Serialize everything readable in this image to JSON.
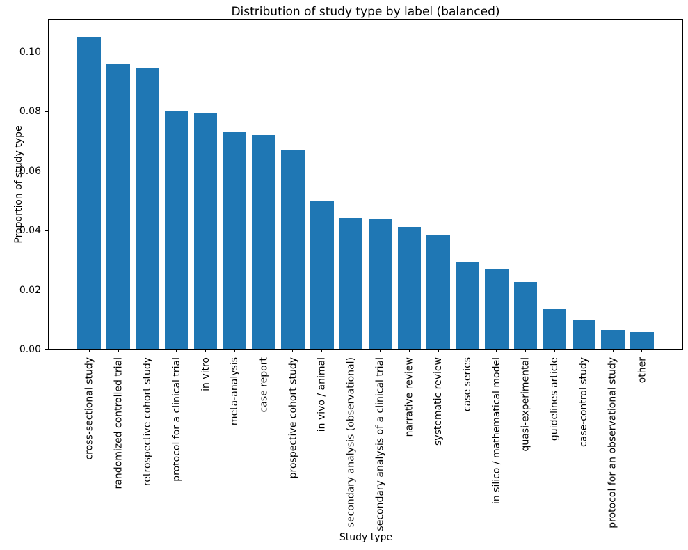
{
  "chart_data": {
    "type": "bar",
    "title": "Distribution of study type by label (balanced)",
    "xlabel": "Study type",
    "ylabel": "Proportion of study type",
    "bar_color": "#1f77b4",
    "background_color": "#ffffff",
    "grid": false,
    "legend_position": "none",
    "x_tick_rotation": 90,
    "ylim": [
      0,
      0.1107
    ],
    "yticks": [
      0,
      0.02,
      0.04,
      0.06,
      0.08,
      0.1
    ],
    "ytick_labels": [
      "0.00",
      "0.02",
      "0.04",
      "0.06",
      "0.08",
      "0.10"
    ],
    "categories": [
      "cross-sectional study",
      "randomized controlled trial",
      "retrospective cohort study",
      "protocol for a clinical trial",
      "in vitro",
      "meta-analysis",
      "case report",
      "prospective cohort study",
      "in vivo / animal",
      "secondary analysis (observational)",
      "secondary analysis of a clinical trial",
      "narrative review",
      "systematic review",
      "case series",
      "in silico / mathematical model",
      "quasi-experimental",
      "guidelines article",
      "case-control study",
      "protocol for an observational study",
      "other"
    ],
    "values": [
      0.1051,
      0.096,
      0.0948,
      0.0804,
      0.0794,
      0.0733,
      0.072,
      0.067,
      0.05,
      0.0443,
      0.0439,
      0.0411,
      0.0383,
      0.0296,
      0.0271,
      0.0227,
      0.0135,
      0.01,
      0.0065,
      0.0058
    ]
  }
}
